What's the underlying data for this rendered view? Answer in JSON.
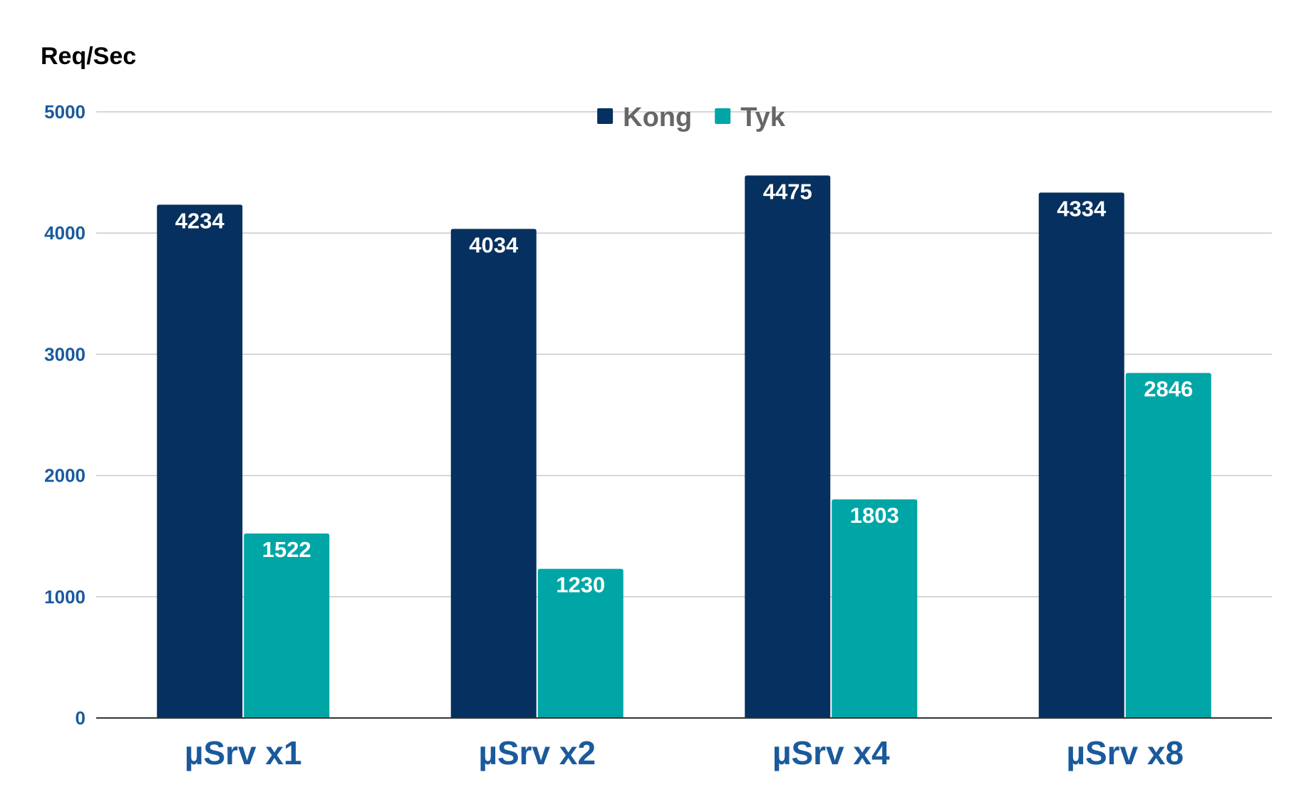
{
  "chart_data": {
    "type": "bar",
    "title": "",
    "xlabel": "",
    "ylabel": "Req/Sec",
    "ylim": [
      0,
      5000
    ],
    "yticks": [
      0,
      1000,
      2000,
      3000,
      4000,
      5000
    ],
    "grid": true,
    "legend_position": "top-center",
    "categories": [
      "µSrv x1",
      "µSrv x2",
      "µSrv x4",
      "µSrv x8"
    ],
    "series": [
      {
        "name": "Kong",
        "color": "#06305f",
        "values": [
          4234,
          4034,
          4475,
          4334
        ]
      },
      {
        "name": "Tyk",
        "color": "#00a6a6",
        "values": [
          1522,
          1230,
          1803,
          2846
        ]
      }
    ]
  }
}
